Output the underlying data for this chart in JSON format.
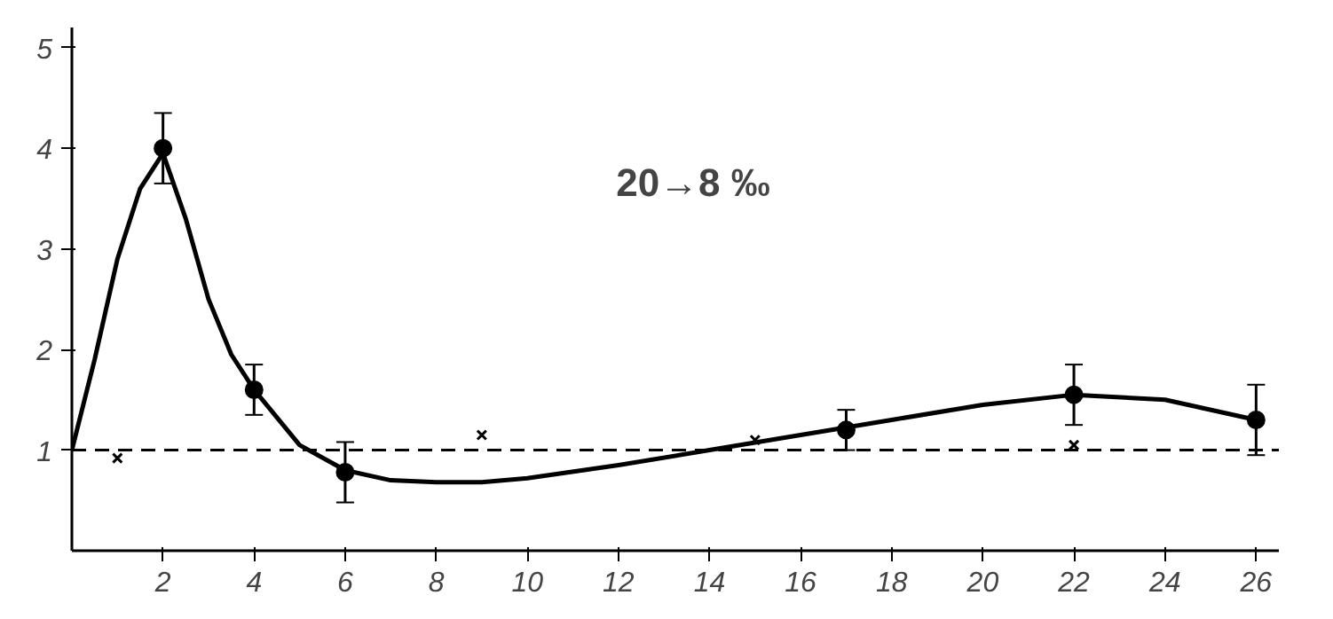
{
  "chart_data": {
    "type": "line",
    "xlim": [
      0,
      26.5
    ],
    "ylim": [
      0,
      5.2
    ],
    "xticks": [
      2,
      4,
      6,
      8,
      10,
      12,
      14,
      16,
      18,
      20,
      22,
      24,
      26
    ],
    "yticks": [
      1,
      2,
      3,
      4,
      5
    ],
    "grid": false,
    "annotations": [
      "20→8 ‰"
    ],
    "ref_lines": [
      {
        "axis": "y",
        "value": 1.0,
        "label": null,
        "color": "#000000",
        "line_style": "dashed"
      }
    ],
    "series": [
      {
        "color": "#000000",
        "marker": "none",
        "x": [
          0,
          0.5,
          1,
          1.5,
          2,
          2.5,
          3,
          3.5,
          4,
          5,
          6,
          7,
          8,
          9,
          10,
          12,
          14,
          16,
          18,
          20,
          22,
          24,
          26
        ],
        "values": [
          1.0,
          1.9,
          2.9,
          3.6,
          3.95,
          3.3,
          2.5,
          1.95,
          1.6,
          1.05,
          0.8,
          0.7,
          0.68,
          0.68,
          0.72,
          0.85,
          1.0,
          1.15,
          1.3,
          1.45,
          1.55,
          1.5,
          1.3
        ]
      },
      {
        "type": "scatter",
        "color": "#000000",
        "marker": "circle",
        "x": [
          2,
          4,
          6,
          17,
          22,
          26
        ],
        "values": [
          4.0,
          1.6,
          0.78,
          1.2,
          1.55,
          1.3
        ],
        "errors": [
          0.35,
          0.25,
          0.3,
          0.2,
          0.3,
          0.35
        ]
      },
      {
        "type": "scatter",
        "color": "#000000",
        "marker": "cross",
        "x": [
          1,
          9,
          15,
          22
        ],
        "values": [
          0.92,
          1.15,
          1.1,
          1.05
        ]
      }
    ]
  }
}
